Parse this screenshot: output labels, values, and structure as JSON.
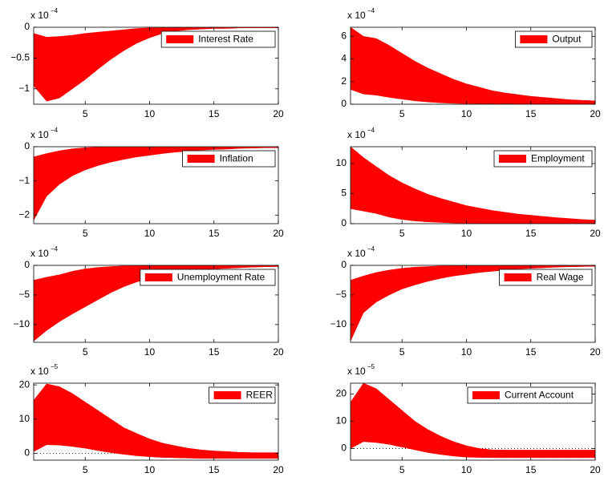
{
  "chart_data": [
    {
      "type": "band",
      "scale_label": "x 10",
      "scale_exponent": "−4",
      "x": [
        1,
        2,
        3,
        4,
        5,
        6,
        7,
        8,
        9,
        10,
        11,
        12,
        13,
        14,
        15,
        16,
        17,
        18,
        19,
        20
      ],
      "xlim": [
        1,
        20
      ],
      "xticks": [
        5,
        10,
        15,
        20
      ],
      "ylim": [
        -1.25,
        0
      ],
      "yticks": [
        {
          "value": -1,
          "label": "−1"
        },
        {
          "value": -0.5,
          "label": "−0.5"
        },
        0
      ],
      "legend": "upper right",
      "series": [
        {
          "name": "Interest Rate",
          "color": "#ff0000",
          "upper": [
            -0.1,
            -0.16,
            -0.15,
            -0.13,
            -0.1,
            -0.08,
            -0.06,
            -0.04,
            -0.02,
            -0.01,
            -0.005,
            0,
            0,
            0,
            0,
            0,
            0,
            0,
            0,
            0
          ],
          "lower": [
            -0.95,
            -1.2,
            -1.15,
            -1.0,
            -0.85,
            -0.68,
            -0.52,
            -0.38,
            -0.26,
            -0.17,
            -0.1,
            -0.06,
            -0.04,
            -0.03,
            -0.02,
            -0.02,
            -0.01,
            -0.01,
            -0.01,
            -0.01
          ]
        }
      ]
    },
    {
      "type": "band",
      "scale_label": "x 10",
      "scale_exponent": "−4",
      "x": [
        1,
        2,
        3,
        4,
        5,
        6,
        7,
        8,
        9,
        10,
        11,
        12,
        13,
        14,
        15,
        16,
        17,
        18,
        19,
        20
      ],
      "xlim": [
        1,
        20
      ],
      "xticks": [
        5,
        10,
        15,
        20
      ],
      "ylim": [
        0,
        6.8
      ],
      "yticks": [
        0,
        2,
        4,
        6
      ],
      "legend": "upper right",
      "zero_line": true,
      "series": [
        {
          "name": "Output",
          "color": "#ff0000",
          "upper": [
            6.8,
            6.0,
            5.8,
            5.2,
            4.5,
            3.8,
            3.2,
            2.7,
            2.2,
            1.8,
            1.5,
            1.2,
            1.0,
            0.85,
            0.7,
            0.6,
            0.5,
            0.4,
            0.35,
            0.3
          ],
          "lower": [
            1.3,
            0.9,
            0.8,
            0.6,
            0.45,
            0.3,
            0.2,
            0.12,
            0.08,
            0.05,
            0.03,
            0.02,
            0.01,
            0,
            0,
            0,
            0,
            0,
            0,
            0
          ]
        }
      ]
    },
    {
      "type": "band",
      "scale_label": "x 10",
      "scale_exponent": "−4",
      "x": [
        1,
        2,
        3,
        4,
        5,
        6,
        7,
        8,
        9,
        10,
        11,
        12,
        13,
        14,
        15,
        16,
        17,
        18,
        19,
        20
      ],
      "xlim": [
        1,
        20
      ],
      "xticks": [
        5,
        10,
        15,
        20
      ],
      "ylim": [
        -2.25,
        0
      ],
      "yticks": [
        {
          "value": -2,
          "label": "−2"
        },
        {
          "value": -1,
          "label": "−1"
        },
        0
      ],
      "legend": "upper right",
      "series": [
        {
          "name": "Inflation",
          "color": "#ff0000",
          "upper": [
            -0.3,
            -0.2,
            -0.12,
            -0.06,
            -0.03,
            -0.01,
            0,
            0,
            0,
            0,
            0,
            0,
            0,
            0,
            0,
            0,
            0,
            0,
            0,
            0
          ],
          "lower": [
            -2.15,
            -1.45,
            -1.1,
            -0.85,
            -0.68,
            -0.55,
            -0.45,
            -0.37,
            -0.3,
            -0.25,
            -0.2,
            -0.16,
            -0.13,
            -0.1,
            -0.08,
            -0.07,
            -0.05,
            -0.04,
            -0.03,
            -0.03
          ]
        }
      ]
    },
    {
      "type": "band",
      "scale_label": "x 10",
      "scale_exponent": "−4",
      "x": [
        1,
        2,
        3,
        4,
        5,
        6,
        7,
        8,
        9,
        10,
        11,
        12,
        13,
        14,
        15,
        16,
        17,
        18,
        19,
        20
      ],
      "xlim": [
        1,
        20
      ],
      "xticks": [
        5,
        10,
        15,
        20
      ],
      "ylim": [
        0,
        12.8
      ],
      "yticks": [
        0,
        5,
        10
      ],
      "legend": "upper right",
      "series": [
        {
          "name": "Employment",
          "color": "#ff0000",
          "upper": [
            12.8,
            11,
            9.5,
            8,
            6.8,
            5.8,
            4.9,
            4.2,
            3.6,
            3.0,
            2.6,
            2.2,
            1.9,
            1.6,
            1.4,
            1.2,
            1.0,
            0.85,
            0.7,
            0.6
          ],
          "lower": [
            2.5,
            2.1,
            1.7,
            1.1,
            0.7,
            0.45,
            0.3,
            0.2,
            0.12,
            0.08,
            0.05,
            0.03,
            0.02,
            0.01,
            0,
            0,
            0,
            0,
            0,
            0
          ]
        }
      ]
    },
    {
      "type": "band",
      "scale_label": "x 10",
      "scale_exponent": "−4",
      "x": [
        1,
        2,
        3,
        4,
        5,
        6,
        7,
        8,
        9,
        10,
        11,
        12,
        13,
        14,
        15,
        16,
        17,
        18,
        19,
        20
      ],
      "xlim": [
        1,
        20
      ],
      "xticks": [
        5,
        10,
        15,
        20
      ],
      "ylim": [
        -13,
        0
      ],
      "yticks": [
        {
          "value": -10,
          "label": "−10"
        },
        {
          "value": -5,
          "label": "−5"
        },
        0
      ],
      "legend": "upper right",
      "series": [
        {
          "name": "Unemployment Rate",
          "color": "#ff0000",
          "upper": [
            -2.5,
            -2,
            -1.6,
            -1,
            -0.6,
            -0.35,
            -0.2,
            -0.1,
            -0.05,
            -0.02,
            0,
            0,
            0,
            0,
            0,
            0,
            0,
            0,
            0,
            0
          ],
          "lower": [
            -12.8,
            -11,
            -9.5,
            -8.2,
            -7,
            -5.8,
            -4.6,
            -3.6,
            -2.8,
            -2.2,
            -1.7,
            -1.3,
            -1.0,
            -0.8,
            -0.6,
            -0.5,
            -0.4,
            -0.3,
            -0.25,
            -0.2
          ]
        }
      ]
    },
    {
      "type": "band",
      "scale_label": "x 10",
      "scale_exponent": "−4",
      "x": [
        1,
        2,
        3,
        4,
        5,
        6,
        7,
        8,
        9,
        10,
        11,
        12,
        13,
        14,
        15,
        16,
        17,
        18,
        19,
        20
      ],
      "xlim": [
        1,
        20
      ],
      "xticks": [
        5,
        10,
        15,
        20
      ],
      "ylim": [
        -13,
        0
      ],
      "yticks": [
        {
          "value": -10,
          "label": "−10"
        },
        {
          "value": -5,
          "label": "−5"
        },
        0
      ],
      "legend": "upper right",
      "series": [
        {
          "name": "Real Wage",
          "color": "#ff0000",
          "upper": [
            -2.5,
            -1.8,
            -1.2,
            -0.8,
            -0.5,
            -0.3,
            -0.2,
            -0.1,
            -0.05,
            -0.02,
            0,
            0,
            0,
            0,
            0,
            0,
            0,
            0,
            0,
            0
          ],
          "lower": [
            -12.8,
            -8,
            -6.2,
            -5,
            -4,
            -3.3,
            -2.7,
            -2.2,
            -1.8,
            -1.5,
            -1.2,
            -1.0,
            -0.8,
            -0.6,
            -0.5,
            -0.4,
            -0.3,
            -0.25,
            -0.2,
            -0.15
          ]
        }
      ]
    },
    {
      "type": "band",
      "scale_label": "x 10",
      "scale_exponent": "−5",
      "x": [
        1,
        2,
        3,
        4,
        5,
        6,
        7,
        8,
        9,
        10,
        11,
        12,
        13,
        14,
        15,
        16,
        17,
        18,
        19,
        20
      ],
      "xlim": [
        1,
        20
      ],
      "xticks": [
        5,
        10,
        15,
        20
      ],
      "ylim": [
        -2,
        20.5
      ],
      "yticks": [
        0,
        10,
        20
      ],
      "legend": "upper right",
      "zero_line": true,
      "series": [
        {
          "name": "REER",
          "color": "#ff0000",
          "upper": [
            15.5,
            20.3,
            19.5,
            17.5,
            15,
            12.5,
            10,
            7.5,
            5.8,
            4.2,
            3,
            2.2,
            1.5,
            1.0,
            0.7,
            0.5,
            0.3,
            0.2,
            0.2,
            0.2
          ],
          "lower": [
            0.5,
            2.5,
            2.4,
            2.0,
            1.5,
            0.8,
            0.2,
            -0.3,
            -0.7,
            -1.0,
            -1.2,
            -1.3,
            -1.4,
            -1.5,
            -1.5,
            -1.5,
            -1.5,
            -1.5,
            -1.5,
            -1.5
          ]
        }
      ]
    },
    {
      "type": "band",
      "scale_label": "x 10",
      "scale_exponent": "−5",
      "x": [
        1,
        2,
        3,
        4,
        5,
        6,
        7,
        8,
        9,
        10,
        11,
        12,
        13,
        14,
        15,
        16,
        17,
        18,
        19,
        20
      ],
      "xlim": [
        1,
        20
      ],
      "xticks": [
        5,
        10,
        15,
        20
      ],
      "ylim": [
        -4.3,
        24
      ],
      "yticks": [
        0,
        10,
        20
      ],
      "legend": "upper right",
      "zero_line": true,
      "series": [
        {
          "name": "Current Account",
          "color": "#ff0000",
          "upper": [
            17,
            24,
            22,
            18,
            14,
            10,
            7,
            4.5,
            2.5,
            1,
            0,
            -0.5,
            -0.6,
            -0.6,
            -0.6,
            -0.6,
            -0.6,
            -0.6,
            -0.6,
            -0.6
          ],
          "lower": [
            0,
            2.5,
            2.2,
            1.5,
            0.5,
            -0.5,
            -1.5,
            -2.2,
            -2.8,
            -3.2,
            -3.3,
            -3.4,
            -3.4,
            -3.4,
            -3.4,
            -3.4,
            -3.4,
            -3.4,
            -3.4,
            -3.4
          ]
        }
      ]
    }
  ]
}
